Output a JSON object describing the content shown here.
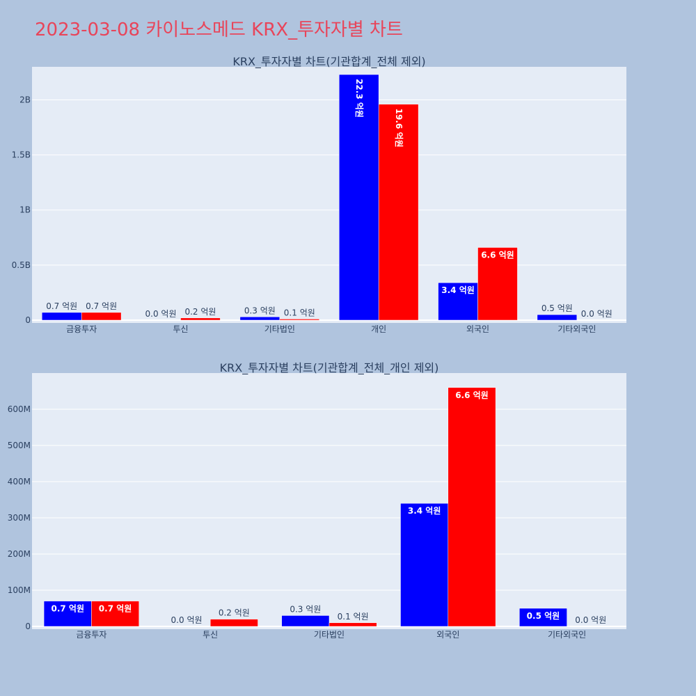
{
  "page": {
    "title": "2023-03-08 카이노스메드 KRX_투자자별 차트",
    "title_color": "#e8455a",
    "background": "#b0c4de",
    "plot_background": "#e5ecf6"
  },
  "chart_data": [
    {
      "type": "bar",
      "title": "KRX_투자자별 차트(기관합계_전체 제외)",
      "categories": [
        "금융투자",
        "투신",
        "기타법인",
        "개인",
        "외국인",
        "기타외국인"
      ],
      "series": [
        {
          "color": "#0000ff",
          "values": [
            70000000,
            0,
            30000000,
            2230000000,
            340000000,
            50000000
          ],
          "labels": [
            "0.7 억원",
            "0.0 억원",
            "0.3 억원",
            "22.3 억원",
            "3.4 억원",
            "0.5 억원"
          ]
        },
        {
          "color": "#ff0000",
          "values": [
            70000000,
            20000000,
            10000000,
            1960000000,
            660000000,
            0
          ],
          "labels": [
            "0.7 억원",
            "0.2 억원",
            "0.1 억원",
            "19.6 억원",
            "6.6 억원",
            "0.0 억원"
          ]
        }
      ],
      "ylim": [
        0,
        2300000000
      ],
      "yticks": [
        0,
        500000000,
        1000000000,
        1500000000,
        2000000000
      ],
      "ytick_labels": [
        "0",
        "0.5B",
        "1B",
        "1.5B",
        "2B"
      ],
      "grid": true
    },
    {
      "type": "bar",
      "title": "KRX_투자자별 차트(기관합계_전체_개인 제외)",
      "categories": [
        "금융투자",
        "투신",
        "기타법인",
        "외국인",
        "기타외국인"
      ],
      "series": [
        {
          "color": "#0000ff",
          "values": [
            70000000,
            0,
            30000000,
            340000000,
            50000000
          ],
          "labels": [
            "0.7 억원",
            "0.0 억원",
            "0.3 억원",
            "3.4 억원",
            "0.5 억원"
          ]
        },
        {
          "color": "#ff0000",
          "values": [
            70000000,
            20000000,
            10000000,
            660000000,
            0
          ],
          "labels": [
            "0.7 억원",
            "0.2 억원",
            "0.1 억원",
            "6.6 억원",
            "0.0 억원"
          ]
        }
      ],
      "ylim": [
        0,
        700000000
      ],
      "yticks": [
        0,
        100000000,
        200000000,
        300000000,
        400000000,
        500000000,
        600000000
      ],
      "ytick_labels": [
        "0",
        "100M",
        "200M",
        "300M",
        "400M",
        "500M",
        "600M"
      ],
      "grid": true
    }
  ]
}
